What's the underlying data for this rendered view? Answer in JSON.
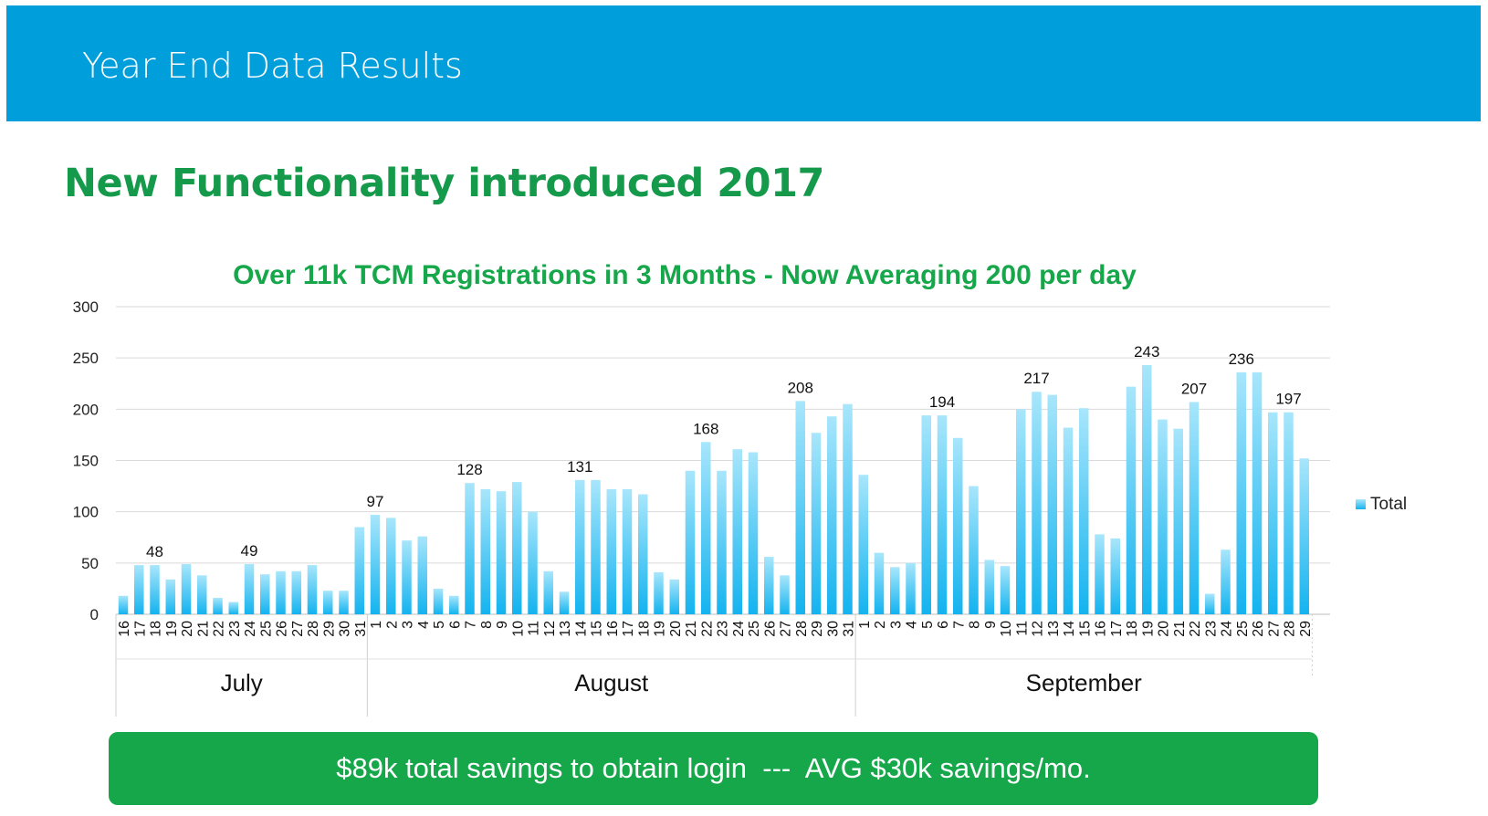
{
  "header": {
    "title": "Year End Data Results"
  },
  "slide": {
    "subtitle": "New Functionality introduced 2017"
  },
  "banner": {
    "text": "$89k total savings to obtain login  ---  AVG $30k savings/mo."
  },
  "colors": {
    "header_bg": "#009fdb",
    "accent_green": "#16a74a",
    "bar_top": "#a8e6fb",
    "bar_bottom": "#14b3ef"
  },
  "chart_data": {
    "type": "bar",
    "title": "Over 11k TCM Registrations in 3 Months - Now Averaging 200 per day",
    "xlabel": "",
    "ylabel": "",
    "ylim": [
      0,
      300
    ],
    "yticks": [
      0,
      50,
      100,
      150,
      200,
      250,
      300
    ],
    "grid": true,
    "legend_position": "right",
    "groups": [
      {
        "name": "July",
        "days": [
          "16",
          "17",
          "18",
          "19",
          "20",
          "21",
          "22",
          "23",
          "24",
          "25",
          "26",
          "27",
          "28",
          "29",
          "30",
          "31"
        ]
      },
      {
        "name": "August",
        "days": [
          "1",
          "2",
          "3",
          "4",
          "5",
          "6",
          "7",
          "8",
          "9",
          "10",
          "11",
          "12",
          "13",
          "14",
          "15",
          "16",
          "17",
          "18",
          "19",
          "20",
          "21",
          "22",
          "23",
          "24",
          "25",
          "26",
          "27",
          "28",
          "29",
          "30",
          "31"
        ]
      },
      {
        "name": "September",
        "days": [
          "1",
          "2",
          "3",
          "4",
          "5",
          "6",
          "7",
          "8",
          "9",
          "10",
          "11",
          "12",
          "13",
          "14",
          "15",
          "16",
          "17",
          "18",
          "19",
          "20",
          "21",
          "22",
          "23",
          "24",
          "25",
          "26",
          "27",
          "28",
          "29"
        ]
      }
    ],
    "series": [
      {
        "name": "Total",
        "values": [
          18,
          48,
          48,
          34,
          49,
          38,
          16,
          12,
          49,
          39,
          42,
          42,
          48,
          23,
          23,
          85,
          97,
          94,
          72,
          76,
          25,
          18,
          128,
          122,
          120,
          129,
          100,
          42,
          22,
          131,
          131,
          122,
          122,
          117,
          41,
          34,
          140,
          168,
          140,
          161,
          158,
          56,
          38,
          208,
          177,
          193,
          205,
          136,
          60,
          46,
          50,
          194,
          194,
          172,
          125,
          53,
          47,
          200,
          217,
          214,
          182,
          201,
          78,
          74,
          222,
          243,
          190,
          181,
          207,
          20,
          63,
          236,
          236,
          197,
          197,
          152
        ]
      }
    ],
    "data_labels": [
      {
        "index": 2,
        "value": "48"
      },
      {
        "index": 8,
        "value": "49"
      },
      {
        "index": 16,
        "value": "97"
      },
      {
        "index": 22,
        "value": "128"
      },
      {
        "index": 29,
        "value": "131"
      },
      {
        "index": 37,
        "value": "168"
      },
      {
        "index": 43,
        "value": "208"
      },
      {
        "index": 52,
        "value": "194"
      },
      {
        "index": 58,
        "value": "217"
      },
      {
        "index": 65,
        "value": "243"
      },
      {
        "index": 68,
        "value": "207"
      },
      {
        "index": 71,
        "value": "236"
      },
      {
        "index": 74,
        "value": "197"
      }
    ]
  }
}
